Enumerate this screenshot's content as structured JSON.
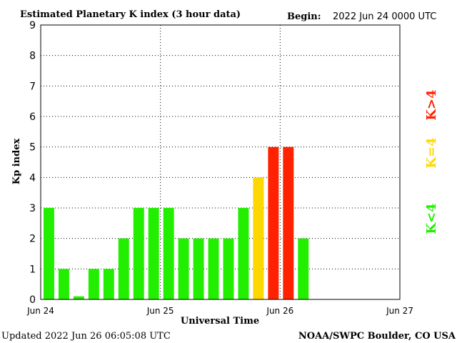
{
  "header": {
    "title": "Estimated Planetary K index (3 hour data)",
    "begin_label": "Begin:",
    "begin_value": "2022 Jun 24 0000 UTC"
  },
  "footer": {
    "updated": "Updated 2022 Jun 26 06:05:08 UTC",
    "source": "NOAA/SWPC Boulder, CO USA"
  },
  "legend": {
    "low": "K<4",
    "mid": "K=4",
    "high": "K>4"
  },
  "colors": {
    "low": "#22ee00",
    "mid": "#ffd700",
    "high": "#ff2200"
  },
  "chart_data": {
    "type": "bar",
    "title": "Estimated Planetary K index (3 hour data)",
    "xlabel": "Universal Time",
    "ylabel": "Kp index",
    "ylim": [
      0,
      9
    ],
    "yticks": [
      "0",
      "1",
      "2",
      "3",
      "4",
      "5",
      "6",
      "7",
      "8",
      "9"
    ],
    "xticks": [
      "Jun 24",
      "Jun 25",
      "Jun 26",
      "Jun 27"
    ],
    "interval_hours": 3,
    "slots": 24,
    "values": [
      3,
      1,
      0.1,
      1,
      1,
      2,
      3,
      3,
      3,
      2,
      2,
      2,
      2,
      3,
      4,
      5,
      5,
      2
    ],
    "grid": true
  }
}
